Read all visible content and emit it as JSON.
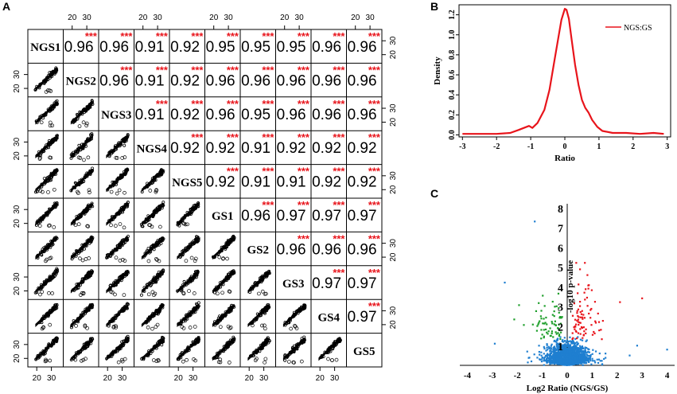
{
  "chart_data": [
    {
      "panel": "A",
      "type": "scatter",
      "title": "",
      "variables": [
        "NGS1",
        "NGS2",
        "NGS3",
        "NGS4",
        "NGS5",
        "GS1",
        "GS2",
        "GS3",
        "GS4",
        "GS5"
      ],
      "correlations": [
        [
          "",
          "0.96",
          "0.96",
          "0.91",
          "0.92",
          "0.95",
          "0.95",
          "0.95",
          "0.96",
          "0.96"
        ],
        [
          "",
          "",
          "0.96",
          "0.91",
          "0.92",
          "0.96",
          "0.96",
          "0.96",
          "0.96",
          "0.96"
        ],
        [
          "",
          "",
          "",
          "0.91",
          "0.92",
          "0.96",
          "0.95",
          "0.96",
          "0.96",
          "0.96"
        ],
        [
          "",
          "",
          "",
          "",
          "0.92",
          "0.92",
          "0.91",
          "0.92",
          "0.92",
          "0.92"
        ],
        [
          "",
          "",
          "",
          "",
          "",
          "0.92",
          "0.91",
          "0.91",
          "0.92",
          "0.92"
        ],
        [
          "",
          "",
          "",
          "",
          "",
          "",
          "0.96",
          "0.97",
          "0.97",
          "0.97"
        ],
        [
          "",
          "",
          "",
          "",
          "",
          "",
          "",
          "0.96",
          "0.96",
          "0.96"
        ],
        [
          "",
          "",
          "",
          "",
          "",
          "",
          "",
          "",
          "0.97",
          "0.97"
        ],
        [
          "",
          "",
          "",
          "",
          "",
          "",
          "",
          "",
          "",
          "0.97"
        ],
        [
          "",
          "",
          "",
          "",
          "",
          "",
          "",
          "",
          "",
          ""
        ]
      ],
      "significance": "***",
      "significance_color": "#e8141b",
      "tick_labels": [
        "20",
        "30"
      ],
      "axis_range": [
        15,
        37
      ]
    },
    {
      "panel": "B",
      "type": "line",
      "xlabel": "Ratio",
      "ylabel": "Density",
      "xlim": [
        -3.1,
        3.1
      ],
      "ylim": [
        -0.02,
        1.3
      ],
      "xticks": [
        "-3",
        "-2",
        "-1",
        "0",
        "1",
        "2",
        "3"
      ],
      "yticks": [
        "0.0",
        "0.2",
        "0.4",
        "0.6",
        "0.8",
        "1.0",
        "1.2"
      ],
      "legend": "NGS:GS",
      "line_color": "#e8141b",
      "x": [
        -3.0,
        -2.5,
        -2.0,
        -1.6,
        -1.35,
        -1.2,
        -1.05,
        -0.95,
        -0.8,
        -0.6,
        -0.45,
        -0.3,
        -0.2,
        -0.1,
        0.0,
        0.05,
        0.12,
        0.2,
        0.3,
        0.4,
        0.5,
        0.6,
        0.7,
        0.8,
        0.95,
        1.1,
        1.4,
        1.8,
        2.2,
        2.6,
        2.9
      ],
      "y": [
        0.01,
        0.01,
        0.01,
        0.02,
        0.05,
        0.07,
        0.09,
        0.07,
        0.12,
        0.25,
        0.45,
        0.75,
        0.95,
        1.15,
        1.26,
        1.25,
        1.16,
        0.95,
        0.7,
        0.5,
        0.35,
        0.27,
        0.22,
        0.15,
        0.08,
        0.04,
        0.02,
        0.02,
        0.01,
        0.02,
        0.01
      ]
    },
    {
      "panel": "C",
      "type": "scatter",
      "xlabel": "Log2 Ratio (NGS/GS)",
      "ylabel": "-log10 p-value",
      "xlim": [
        -4.3,
        4.3
      ],
      "ylim": [
        0,
        8.2
      ],
      "xticks": [
        "-4",
        "-3",
        "-2",
        "-1",
        "0",
        "1",
        "2",
        "3",
        "4"
      ],
      "yticks": [
        "1",
        "2",
        "3",
        "4",
        "5",
        "6",
        "7",
        "8"
      ],
      "colors": {
        "down": "#1d9e2a",
        "up": "#e8141b",
        "ns": "#1f7fd0"
      }
    }
  ],
  "panel_letters": {
    "a": "A",
    "b": "B",
    "c": "C"
  }
}
